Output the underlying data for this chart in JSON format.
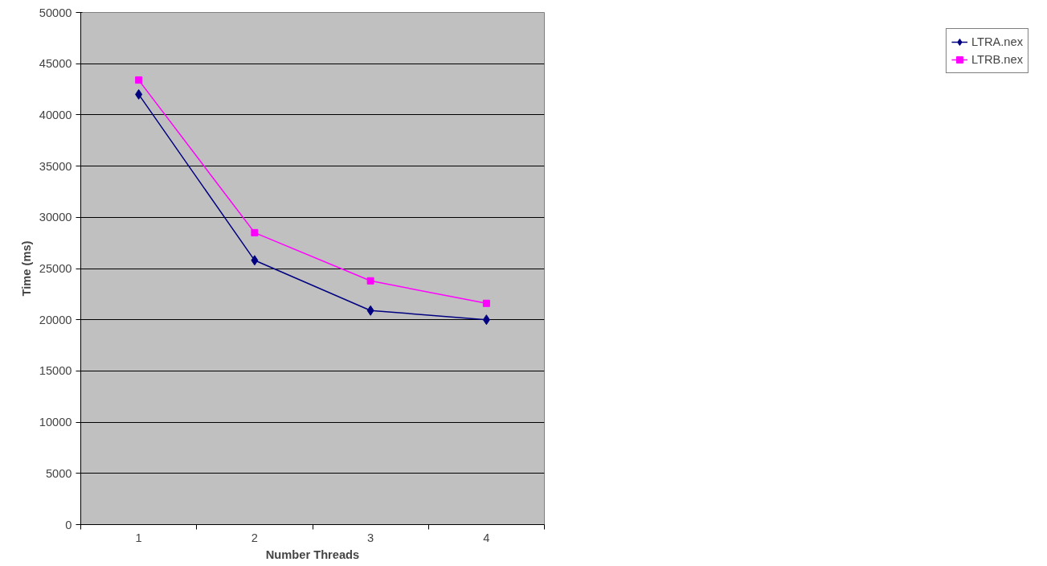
{
  "chart_data": {
    "type": "line",
    "xlabel": "Number Threads",
    "ylabel": "Time (ms)",
    "categories": [
      "1",
      "2",
      "3",
      "4"
    ],
    "series": [
      {
        "name": "LTRA.nex",
        "color": "#000080",
        "marker": "diamond",
        "values": [
          42000,
          25800,
          20900,
          20000
        ]
      },
      {
        "name": "LTRB.nex",
        "color": "#ff00ff",
        "marker": "square",
        "values": [
          43400,
          28500,
          23800,
          21600
        ]
      }
    ],
    "ylim": [
      0,
      50000
    ],
    "yticks": [
      0,
      5000,
      10000,
      15000,
      20000,
      25000,
      30000,
      35000,
      40000,
      45000,
      50000
    ],
    "grid": "y",
    "legend": "right"
  }
}
